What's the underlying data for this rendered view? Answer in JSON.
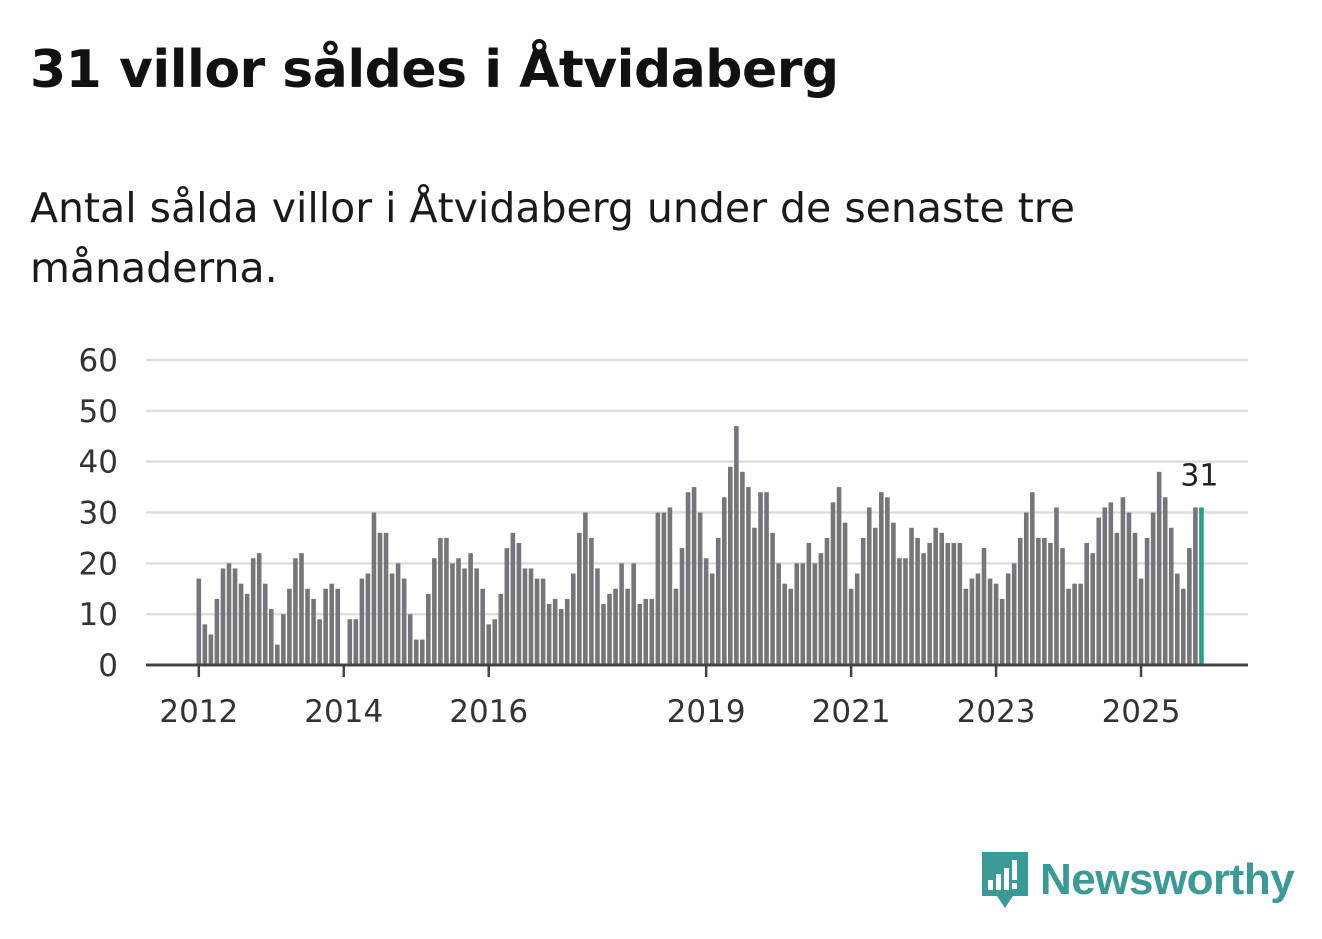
{
  "header": {
    "title": "31 villor såldes i Åtvidaberg",
    "subtitle": "Antal sålda villor i Åtvidaberg under de senaste tre månaderna."
  },
  "brand": {
    "name": "Newsworthy"
  },
  "colors": {
    "bar": "#76767a",
    "highlight": "#2a9d8f",
    "grid": "#dedede",
    "axis": "#444444",
    "brand": "#3b9a96"
  },
  "chart_data": {
    "type": "bar",
    "title": "31 villor såldes i Åtvidaberg",
    "xlabel": "",
    "ylabel": "",
    "ylim": [
      0,
      60
    ],
    "yticks": [
      "0",
      "10",
      "20",
      "30",
      "40",
      "50",
      "60"
    ],
    "x_tick_labels": [
      {
        "label": "2012",
        "index": 0
      },
      {
        "label": "2014",
        "index": 24
      },
      {
        "label": "2016",
        "index": 48
      },
      {
        "label": "2019",
        "index": 84
      },
      {
        "label": "2021",
        "index": 108
      },
      {
        "label": "2023",
        "index": 132
      },
      {
        "label": "2025",
        "index": 156
      }
    ],
    "highlight_label": "31",
    "values": [
      17,
      8,
      6,
      13,
      19,
      20,
      19,
      16,
      14,
      21,
      22,
      16,
      11,
      4,
      10,
      15,
      21,
      22,
      15,
      13,
      9,
      15,
      16,
      15,
      null,
      9,
      9,
      17,
      18,
      30,
      26,
      26,
      18,
      20,
      17,
      10,
      5,
      5,
      14,
      21,
      25,
      25,
      20,
      21,
      19,
      22,
      19,
      15,
      8,
      9,
      14,
      23,
      26,
      24,
      19,
      19,
      17,
      17,
      12,
      13,
      11,
      13,
      18,
      26,
      30,
      25,
      19,
      12,
      14,
      15,
      20,
      15,
      20,
      12,
      13,
      13,
      30,
      30,
      31,
      15,
      23,
      34,
      35,
      30,
      21,
      18,
      25,
      33,
      39,
      47,
      38,
      35,
      27,
      34,
      34,
      26,
      20,
      16,
      15,
      20,
      20,
      24,
      20,
      22,
      25,
      32,
      35,
      28,
      15,
      18,
      25,
      31,
      27,
      34,
      33,
      28,
      21,
      21,
      27,
      25,
      22,
      24,
      27,
      26,
      24,
      24,
      24,
      15,
      17,
      18,
      23,
      17,
      16,
      13,
      18,
      20,
      25,
      30,
      34,
      25,
      25,
      24,
      31,
      23,
      15,
      16,
      16,
      24,
      22,
      29,
      31,
      32,
      26,
      33,
      30,
      26,
      17,
      25,
      30,
      38,
      33,
      27,
      18,
      15,
      23,
      31,
      31
    ]
  }
}
